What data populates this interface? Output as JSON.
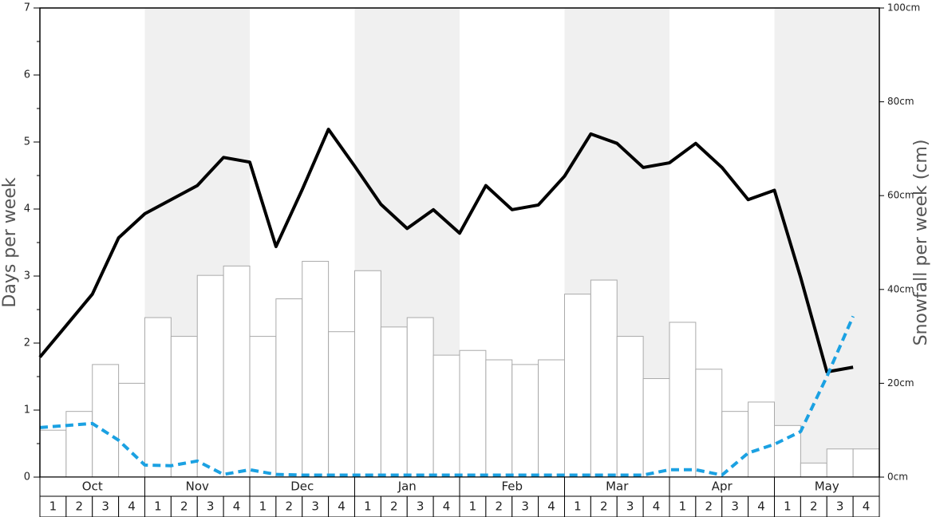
{
  "chart_data": {
    "type": "bar",
    "ylabel": "Days per week",
    "y2label": "Snowfall per week (cm)",
    "months": [
      "Oct",
      "Nov",
      "Dec",
      "Jan",
      "Feb",
      "Mar",
      "Apr",
      "May"
    ],
    "categories": [
      "1",
      "2",
      "3",
      "4",
      "1",
      "2",
      "3",
      "4",
      "1",
      "2",
      "3",
      "4",
      "1",
      "2",
      "3",
      "4",
      "1",
      "2",
      "3",
      "4",
      "1",
      "2",
      "3",
      "4",
      "1",
      "2",
      "3",
      "4",
      "1",
      "2",
      "3",
      "4"
    ],
    "series": [
      {
        "type": "bar",
        "axis": "y2",
        "color": "#ffffff",
        "stroke": "#aaaaaa",
        "values": [
          10,
          14,
          24,
          20,
          34,
          30,
          43,
          45,
          30,
          38,
          46,
          31,
          44,
          32,
          34,
          26,
          27,
          25,
          24,
          25,
          39,
          42,
          30,
          21,
          33,
          23,
          14,
          16,
          11,
          3,
          6,
          6
        ]
      },
      {
        "type": "line",
        "axis": "y",
        "color": "#000000",
        "values": [
          1.79,
          2.26,
          2.73,
          3.57,
          3.93,
          4.14,
          4.35,
          4.77,
          4.7,
          3.44,
          4.29,
          5.19,
          4.64,
          4.07,
          3.71,
          3.99,
          3.64,
          4.35,
          3.99,
          4.06,
          4.49,
          5.12,
          4.98,
          4.62,
          4.69,
          4.98,
          4.62,
          4.14,
          4.28,
          2.98,
          1.57,
          1.64
        ]
      },
      {
        "type": "line",
        "axis": "y",
        "color": "#1ba1e2",
        "dashed": true,
        "values": [
          0.74,
          0.77,
          0.8,
          0.55,
          0.18,
          0.17,
          0.24,
          0.04,
          0.11,
          0.04,
          0.03,
          0.03,
          0.03,
          0.03,
          0.03,
          0.03,
          0.03,
          0.03,
          0.03,
          0.03,
          0.03,
          0.03,
          0.03,
          0.03,
          0.11,
          0.11,
          0.03,
          0.36,
          0.49,
          0.68,
          1.5,
          2.4
        ]
      }
    ],
    "ylim": [
      0,
      7
    ],
    "yticks": [
      0,
      1,
      2,
      3,
      4,
      5,
      6,
      7
    ],
    "y2lim": [
      0,
      100
    ],
    "y2ticks": [
      {
        "value": 0,
        "label": "0cm"
      },
      {
        "value": 20,
        "label": "20cm"
      },
      {
        "value": 40,
        "label": "40cm"
      },
      {
        "value": 60,
        "label": "60cm"
      },
      {
        "value": 80,
        "label": "80cm"
      },
      {
        "value": 100,
        "label": "100cm"
      }
    ],
    "shade_color": "#f0f0f0"
  }
}
